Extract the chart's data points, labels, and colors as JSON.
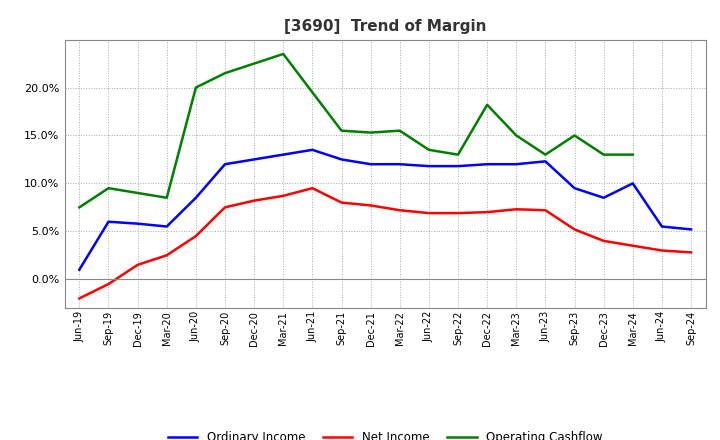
{
  "title": "[3690]  Trend of Margin",
  "x_labels": [
    "Jun-19",
    "Sep-19",
    "Dec-19",
    "Mar-20",
    "Jun-20",
    "Sep-20",
    "Dec-20",
    "Mar-21",
    "Jun-21",
    "Sep-21",
    "Dec-21",
    "Mar-22",
    "Jun-22",
    "Sep-22",
    "Dec-22",
    "Mar-23",
    "Jun-23",
    "Sep-23",
    "Dec-23",
    "Mar-24",
    "Jun-24",
    "Sep-24"
  ],
  "ordinary_income": [
    1.0,
    6.0,
    5.8,
    5.5,
    8.5,
    12.0,
    12.5,
    13.0,
    13.5,
    12.5,
    12.0,
    12.0,
    11.8,
    11.8,
    12.0,
    12.0,
    12.3,
    9.5,
    8.5,
    10.0,
    5.5,
    5.2
  ],
  "net_income": [
    -2.0,
    -0.5,
    1.5,
    2.5,
    4.5,
    7.5,
    8.2,
    8.7,
    9.5,
    8.0,
    7.7,
    7.2,
    6.9,
    6.9,
    7.0,
    7.3,
    7.2,
    5.2,
    4.0,
    3.5,
    3.0,
    2.8
  ],
  "operating_cashflow": [
    7.5,
    9.5,
    9.0,
    8.5,
    20.0,
    21.5,
    22.5,
    23.5,
    19.5,
    15.5,
    15.3,
    15.5,
    13.5,
    13.0,
    18.2,
    15.0,
    13.0,
    15.0,
    13.0,
    13.0,
    null,
    null
  ],
  "ylim": [
    -3.0,
    25.0
  ],
  "yticks": [
    0.0,
    5.0,
    10.0,
    15.0,
    20.0
  ],
  "colors": {
    "ordinary_income": "#0000FF",
    "net_income": "#FF0000",
    "operating_cashflow": "#008000"
  },
  "title_color": "#333333",
  "legend_labels": [
    "Ordinary Income",
    "Net Income",
    "Operating Cashflow"
  ],
  "background_color": "#FFFFFF",
  "plot_bg_color": "#FFFFFF"
}
